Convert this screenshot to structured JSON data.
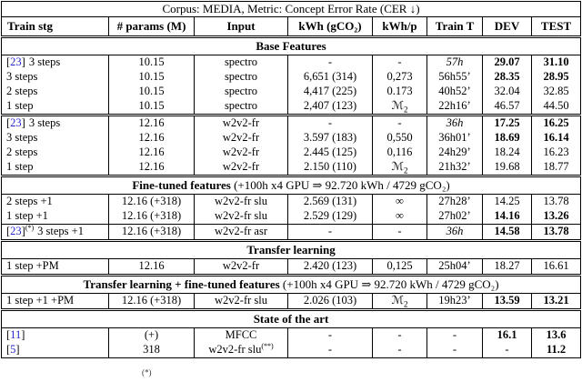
{
  "colors": {
    "citation_blue": "#2626cf",
    "text": "#000000",
    "background": "#ffffff"
  },
  "table": {
    "title": "Corpus: MEDIA, Metric: Concept Error Rate (CER ↓)",
    "header": [
      "Train stg",
      "# params (M)",
      "Input",
      "kWh (gCO₂)",
      "kWh/p",
      "Train T",
      "DEV",
      "TEST"
    ],
    "rows": [
      {
        "type": "section",
        "bold": "Base Features",
        "rest": ""
      },
      {
        "type": "data",
        "cells": [
          {
            "cite": "23",
            "t": "3 steps"
          },
          {
            "t": "10.15"
          },
          {
            "t": "spectro"
          },
          {
            "t": "-"
          },
          {
            "t": "-"
          },
          {
            "t": "57h",
            "i": true
          },
          {
            "t": "29.07",
            "b": true
          },
          {
            "t": "31.10",
            "b": true
          }
        ]
      },
      {
        "type": "data",
        "cells": [
          {
            "t": "3 steps"
          },
          {
            "t": "10.15"
          },
          {
            "t": "spectro"
          },
          {
            "t": "6,651 (314)"
          },
          {
            "t": "0,273"
          },
          {
            "t": "56h55’"
          },
          {
            "t": "28.35",
            "b": true
          },
          {
            "t": "28.95",
            "b": true
          }
        ]
      },
      {
        "type": "data",
        "cells": [
          {
            "t": "2 steps"
          },
          {
            "t": "10.15"
          },
          {
            "t": "spectro"
          },
          {
            "t": "4,417 (225)"
          },
          {
            "t": "0.173"
          },
          {
            "t": "40h52’"
          },
          {
            "t": "32.04"
          },
          {
            "t": "32.85"
          }
        ]
      },
      {
        "type": "data",
        "cells": [
          {
            "t": "1 step"
          },
          {
            "t": "10.15"
          },
          {
            "t": "spectro"
          },
          {
            "t": "2,407 (123)"
          },
          {
            "t": "ℳ",
            "sub": "2"
          },
          {
            "t": "22h16’"
          },
          {
            "t": "46.57"
          },
          {
            "t": "44.50"
          }
        ]
      },
      {
        "type": "data",
        "sep": "double",
        "cells": [
          {
            "cite": "23",
            "t": "3 steps"
          },
          {
            "t": "12.16"
          },
          {
            "t": "w2v2-fr"
          },
          {
            "t": "-"
          },
          {
            "t": "-"
          },
          {
            "t": "36h",
            "i": true
          },
          {
            "t": "17.25",
            "b": true
          },
          {
            "t": "16.25",
            "b": true
          }
        ]
      },
      {
        "type": "data",
        "cells": [
          {
            "t": "3 steps"
          },
          {
            "t": "12.16"
          },
          {
            "t": "w2v2-fr"
          },
          {
            "t": "3.597 (183)"
          },
          {
            "t": "0,550"
          },
          {
            "t": "36h01’"
          },
          {
            "t": "18.69",
            "b": true
          },
          {
            "t": "16.14",
            "b": true
          }
        ]
      },
      {
        "type": "data",
        "cells": [
          {
            "t": "2 steps"
          },
          {
            "t": "12.16"
          },
          {
            "t": "w2v2-fr"
          },
          {
            "t": "2.445 (125)"
          },
          {
            "t": "0,116"
          },
          {
            "t": "24h29’"
          },
          {
            "t": "18.24"
          },
          {
            "t": "16.23"
          }
        ]
      },
      {
        "type": "data",
        "cells": [
          {
            "t": "1 step"
          },
          {
            "t": "12.16"
          },
          {
            "t": "w2v2-fr"
          },
          {
            "t": "2.150 (110)"
          },
          {
            "t": "ℳ",
            "sub": "2"
          },
          {
            "t": "21h32’"
          },
          {
            "t": "19.68"
          },
          {
            "t": "18.77"
          }
        ]
      },
      {
        "type": "section",
        "bold": "Fine-tuned features",
        "rest": " (+100h x4 GPU ⇒ 92.720 kWh / 4729 gCO₂)"
      },
      {
        "type": "data",
        "cells": [
          {
            "t": "2 steps +1"
          },
          {
            "t": "12.16 (+318)"
          },
          {
            "t": "w2v2-fr slu"
          },
          {
            "t": "2.569 (131)"
          },
          {
            "t": "∞"
          },
          {
            "t": "27h28’"
          },
          {
            "t": "14.25"
          },
          {
            "t": "13.78"
          }
        ]
      },
      {
        "type": "data",
        "cells": [
          {
            "t": "1 step +1"
          },
          {
            "t": "12.16 (+318)"
          },
          {
            "t": "w2v2-fr slu"
          },
          {
            "t": "2.529 (129)"
          },
          {
            "t": "∞"
          },
          {
            "t": "27h02’"
          },
          {
            "t": "14.16",
            "b": true
          },
          {
            "t": "13.26",
            "b": true
          }
        ]
      },
      {
        "type": "data",
        "sep": "single",
        "cells": [
          {
            "cite": "23",
            "sup": "(*)",
            "t": "3 steps +1"
          },
          {
            "t": "12.16 (+318)"
          },
          {
            "t": "w2v2-fr asr"
          },
          {
            "t": "-"
          },
          {
            "t": "-"
          },
          {
            "t": "36h",
            "i": true
          },
          {
            "t": "14.58",
            "b": true
          },
          {
            "t": "13.78",
            "b": true
          }
        ]
      },
      {
        "type": "section",
        "bold": "Transfer learning",
        "rest": ""
      },
      {
        "type": "data",
        "cells": [
          {
            "t": "1 step +PM"
          },
          {
            "t": "12.16"
          },
          {
            "t": "w2v2-fr"
          },
          {
            "t": "2.420 (123)"
          },
          {
            "t": "0,125"
          },
          {
            "t": "25h04’"
          },
          {
            "t": "18.27"
          },
          {
            "t": "16.61"
          }
        ]
      },
      {
        "type": "section",
        "bold": "Transfer learning + fine-tuned features",
        "rest": " (+100h x4 GPU ⇒ 92.720 kWh / 4729 gCO₂)"
      },
      {
        "type": "data",
        "cells": [
          {
            "t": "1 step +1 +PM"
          },
          {
            "t": "12.16 (+318)"
          },
          {
            "t": "w2v2-fr slu"
          },
          {
            "t": "2.026 (103)"
          },
          {
            "t": "ℳ",
            "sub": "2"
          },
          {
            "t": "19h23’"
          },
          {
            "t": "13.59",
            "b": true
          },
          {
            "t": "13.21",
            "b": true
          }
        ]
      },
      {
        "type": "section",
        "bold": "State of the art",
        "rest": ""
      },
      {
        "type": "data",
        "cells": [
          {
            "cite": "11"
          },
          {
            "t": "(+)"
          },
          {
            "t": "MFCC"
          },
          {
            "t": "-"
          },
          {
            "t": "-"
          },
          {
            "t": "-"
          },
          {
            "t": "16.1",
            "b": true
          },
          {
            "t": "13.6",
            "b": true
          }
        ]
      },
      {
        "type": "data",
        "cells": [
          {
            "cite": "5"
          },
          {
            "t": "318"
          },
          {
            "t": "w2v2-fr slu",
            "sup": "(**)"
          },
          {
            "t": "-"
          },
          {
            "t": "-"
          },
          {
            "t": "-"
          },
          {
            "t": "-"
          },
          {
            "t": "11.2",
            "b": true
          }
        ]
      }
    ]
  },
  "footnote_fragment": "(*)"
}
